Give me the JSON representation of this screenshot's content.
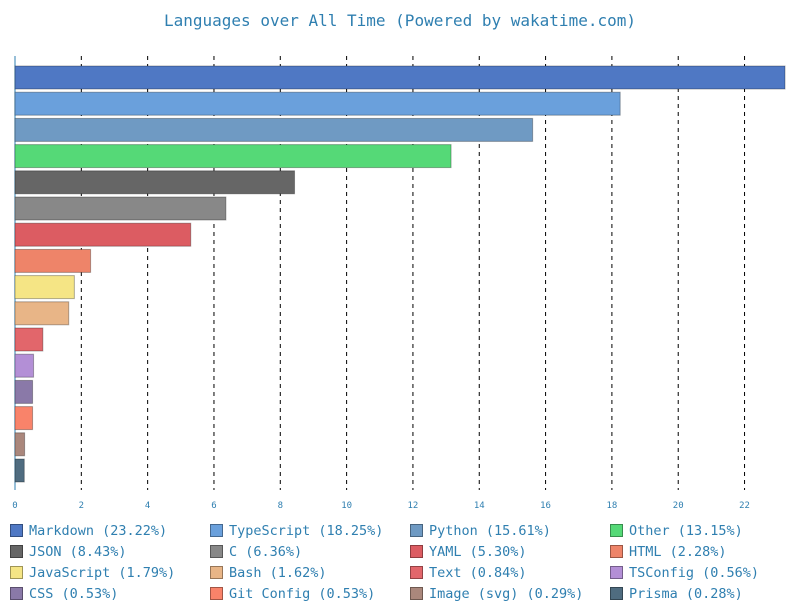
{
  "chart_data": {
    "type": "bar",
    "orientation": "horizontal",
    "title": "Languages over All Time (Powered by wakatime.com)",
    "xlabel": "",
    "ylabel": "",
    "xlim": [
      0,
      23.22
    ],
    "xticks": [
      0,
      2,
      4,
      6,
      8,
      10,
      12,
      14,
      16,
      18,
      20,
      22
    ],
    "grid": "vertical dashed",
    "legend_position": "bottom",
    "categories": [
      "Markdown",
      "TypeScript",
      "Python",
      "Other",
      "JSON",
      "C",
      "YAML",
      "HTML",
      "JavaScript",
      "Bash",
      "Text",
      "TSConfig",
      "CSS",
      "Git Config",
      "Image (svg)",
      "Prisma"
    ],
    "values": [
      23.22,
      18.25,
      15.61,
      13.15,
      8.43,
      6.36,
      5.3,
      2.28,
      1.79,
      1.62,
      0.84,
      0.56,
      0.53,
      0.53,
      0.29,
      0.28
    ],
    "legend_labels": [
      "Markdown (23.22%)",
      "TypeScript (18.25%)",
      "Python (15.61%)",
      "Other (13.15%)",
      "JSON (8.43%)",
      "C (6.36%)",
      "YAML (5.30%)",
      "HTML (2.28%)",
      "JavaScript (1.79%)",
      "Bash (1.62%)",
      "Text (0.84%)",
      "TSConfig (0.56%)",
      "CSS (0.53%)",
      "Git Config (0.53%)",
      "Image (svg) (0.29%)",
      "Prisma (0.28%)"
    ],
    "colors": [
      "#4f78c4",
      "#6aa0dc",
      "#6f9ac3",
      "#55d977",
      "#666666",
      "#888888",
      "#dc5c62",
      "#ee8469",
      "#f5e585",
      "#e8b587",
      "#e2666b",
      "#b38fd6",
      "#8a79a8",
      "#f9836a",
      "#aa877c",
      "#4f6c80"
    ]
  }
}
